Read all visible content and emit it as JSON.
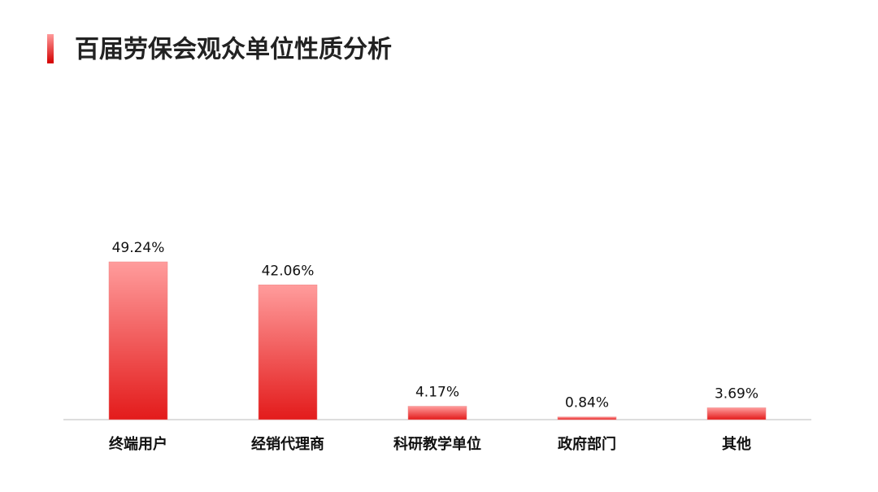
{
  "chart_data": {
    "type": "bar",
    "title": "百届劳保会观众单位性质分析",
    "categories": [
      "终端用户",
      "经销代理商",
      "科研教学单位",
      "政府部门",
      "其他"
    ],
    "values": [
      49.24,
      42.06,
      4.17,
      0.84,
      3.69
    ],
    "value_labels": [
      "49.24%",
      "42.06%",
      "4.17%",
      "0.84%",
      "3.69%"
    ],
    "color": "#e31b1b"
  }
}
